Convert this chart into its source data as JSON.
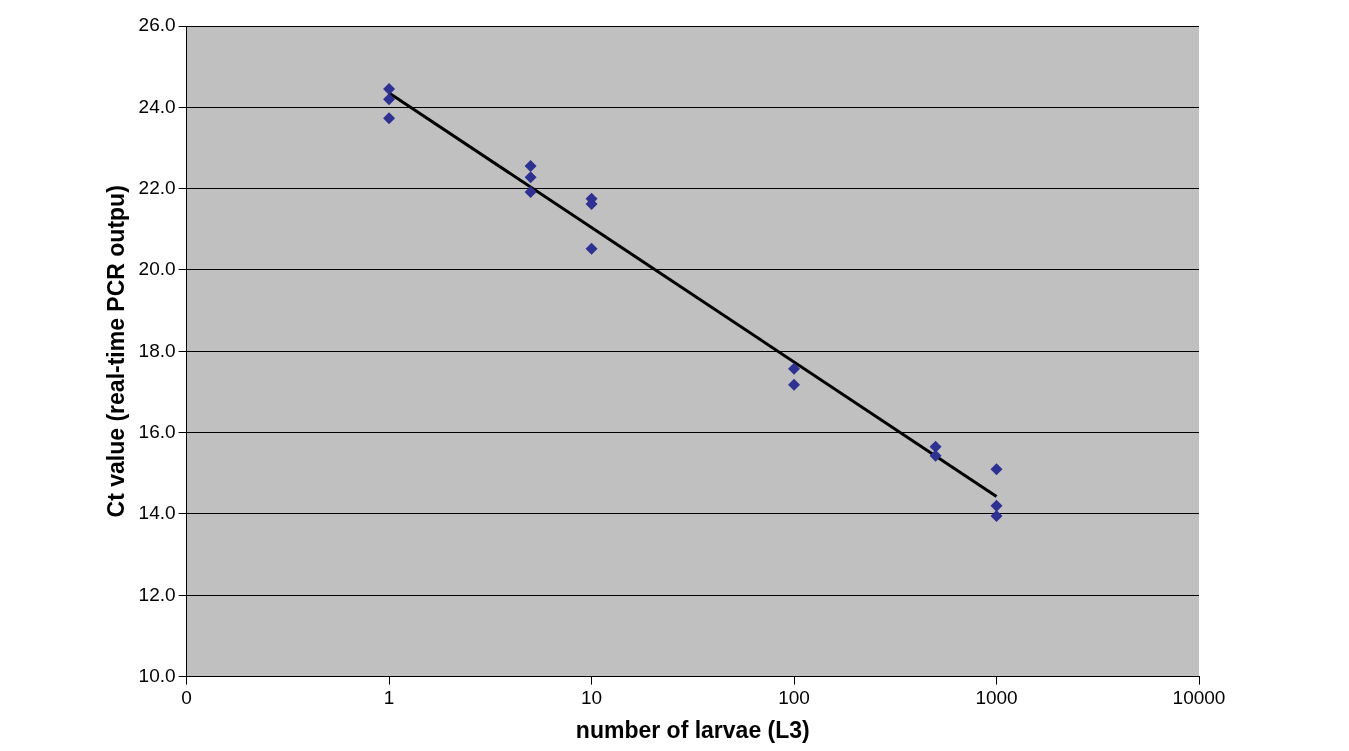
{
  "chart_data": {
    "type": "scatter",
    "xlabel": "number of larvae (L3)",
    "ylabel": "Ct value (real-time PCR outpu)",
    "log": "x",
    "grid": "y",
    "marker": "diamond",
    "xlim": [
      0.1,
      10000
    ],
    "xticks": [
      {
        "value": 0.1,
        "label": "0"
      },
      1,
      10,
      100,
      1000,
      10000
    ],
    "ylim": [
      10,
      26
    ],
    "yticks": [
      {
        "value": 10,
        "label": "10.0"
      },
      {
        "value": 12,
        "label": "12.0"
      },
      {
        "value": 14,
        "label": "14.0"
      },
      {
        "value": 16,
        "label": "16.0"
      },
      {
        "value": 18,
        "label": "18.0"
      },
      {
        "value": 20,
        "label": "20.0"
      },
      {
        "value": 22,
        "label": "22.0"
      },
      {
        "value": 24,
        "label": "24.0"
      },
      {
        "value": 26,
        "label": "26.0"
      }
    ],
    "series": [
      {
        "type": "scatter",
        "color": "#2e3192",
        "x": [
          1,
          1,
          1,
          5,
          5,
          5,
          10,
          10,
          10,
          100,
          100,
          500,
          500,
          1000,
          1000,
          1000
        ],
        "values": [
          24.45,
          24.2,
          23.73,
          22.56,
          22.28,
          21.92,
          21.75,
          21.62,
          20.52,
          17.57,
          17.18,
          15.65,
          15.43,
          15.1,
          14.2,
          13.95
        ]
      },
      {
        "type": "line",
        "color": "#000000",
        "marker": "none",
        "x": [
          1,
          1000
        ],
        "values": [
          24.35,
          14.43
        ]
      }
    ]
  }
}
